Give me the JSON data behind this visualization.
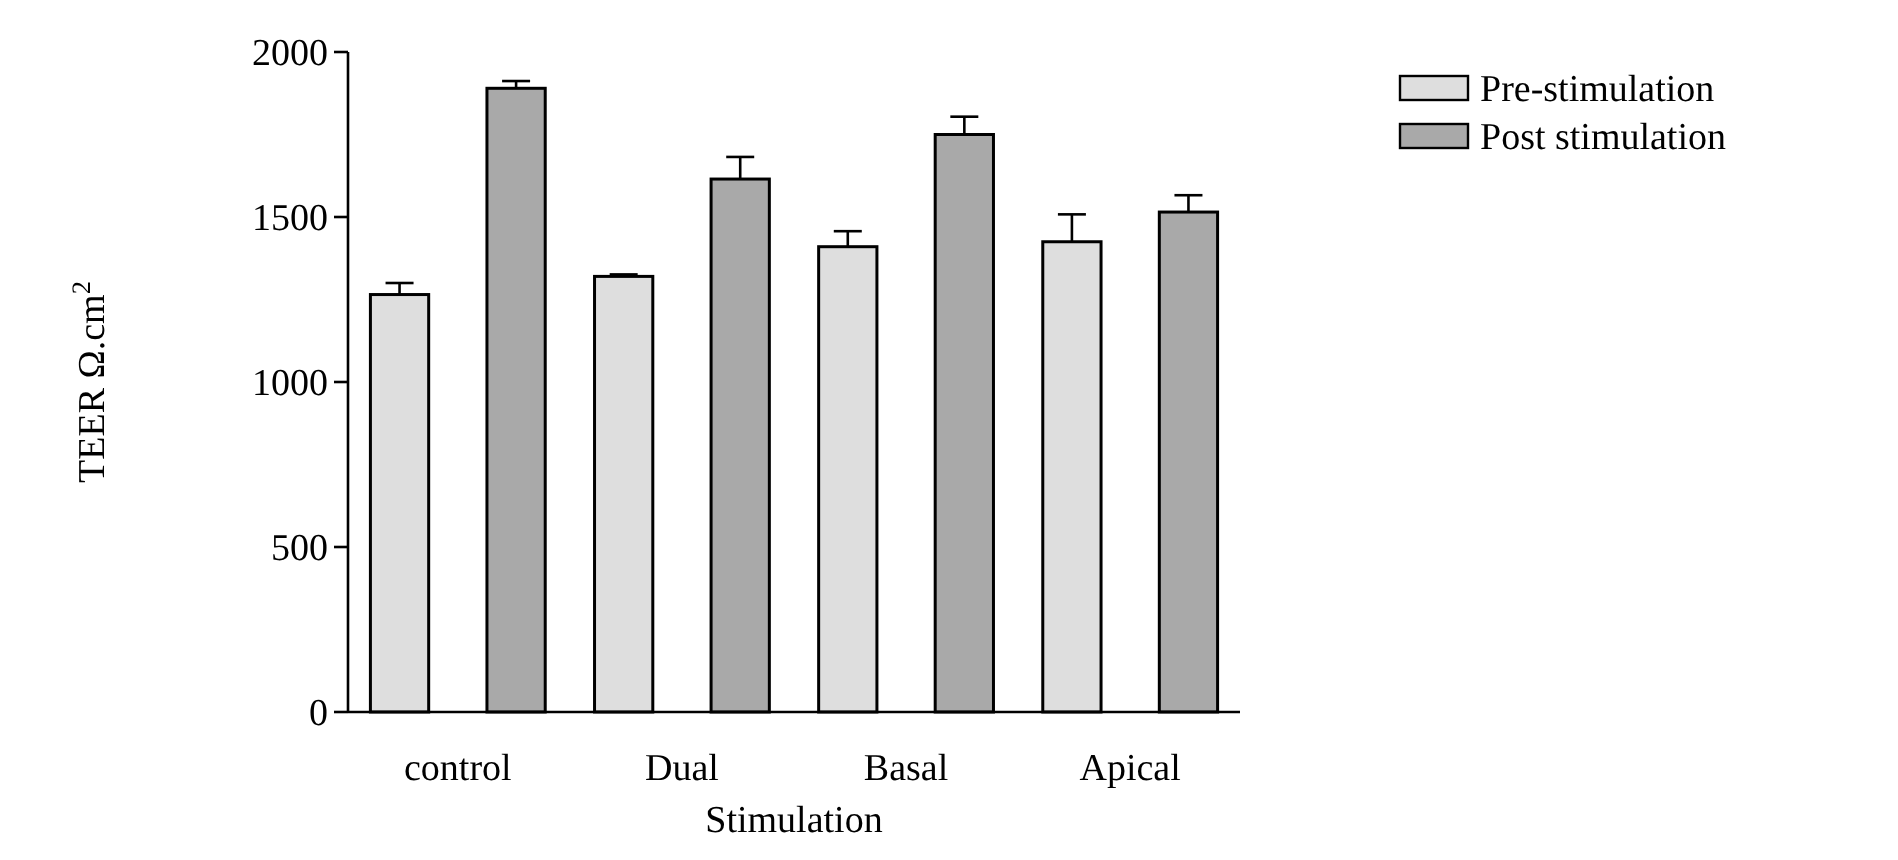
{
  "chart_data": {
    "type": "bar",
    "xlabel": "Stimulation",
    "ylabel": "TEER Ω.cm$^{2}$",
    "categories": [
      "control",
      "Dual",
      "Basal",
      "Apical"
    ],
    "series": [
      {
        "name": "Pre-stimulation",
        "color": "#dedede",
        "values": [
          1265,
          1320,
          1410,
          1425
        ],
        "errors": [
          35,
          6,
          47,
          83
        ]
      },
      {
        "name": "Post stimulation",
        "color": "#a9a9a9",
        "values": [
          1890,
          1615,
          1750,
          1515
        ],
        "errors": [
          22,
          67,
          54,
          51
        ]
      }
    ],
    "ylim": [
      0,
      2000
    ],
    "yticks": [
      0,
      500,
      1000,
      1500,
      2000
    ],
    "grid": false,
    "legend": "top right"
  }
}
